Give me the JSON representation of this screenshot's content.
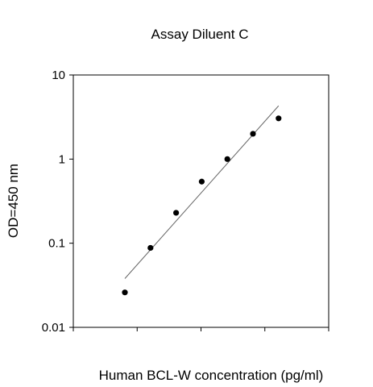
{
  "chart_data": {
    "type": "scatter",
    "title": "Assay Diluent C",
    "xlabel": "Human BCL-W concentration (pg/ml)",
    "ylabel": "OD=450 nm",
    "y_scale": "log",
    "ylim": [
      0.01,
      10
    ],
    "y_ticks": [
      {
        "value": 0.01,
        "label": "0.01"
      },
      {
        "value": 0.1,
        "label": "0.1"
      },
      {
        "value": 1,
        "label": "1"
      },
      {
        "value": 10,
        "label": "10"
      }
    ],
    "x_tick_count": 5,
    "x_tick_labels_shown": false,
    "grid": false,
    "series": [
      {
        "points": [
          {
            "x": 1,
            "y": 0.026
          },
          {
            "x": 2,
            "y": 0.088
          },
          {
            "x": 3,
            "y": 0.23
          },
          {
            "x": 4,
            "y": 0.54
          },
          {
            "x": 5,
            "y": 1.0
          },
          {
            "x": 6,
            "y": 2.0
          },
          {
            "x": 7,
            "y": 3.05
          }
        ]
      }
    ],
    "fit_line": {
      "from": {
        "x": 1,
        "y": 0.038
      },
      "to": {
        "x": 7,
        "y": 4.3
      }
    },
    "colors": {
      "points": "#000000",
      "line": "#666666",
      "axes": "#000000"
    }
  }
}
